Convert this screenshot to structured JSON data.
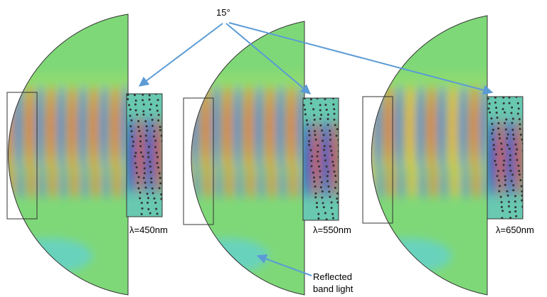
{
  "angle_label": "15°",
  "panels": [
    {
      "wavelength": "λ=450nm"
    },
    {
      "wavelength": "λ=550nm"
    },
    {
      "wavelength": "λ=650nm"
    }
  ],
  "reflected_label": [
    "Reflected",
    "band light"
  ]
}
